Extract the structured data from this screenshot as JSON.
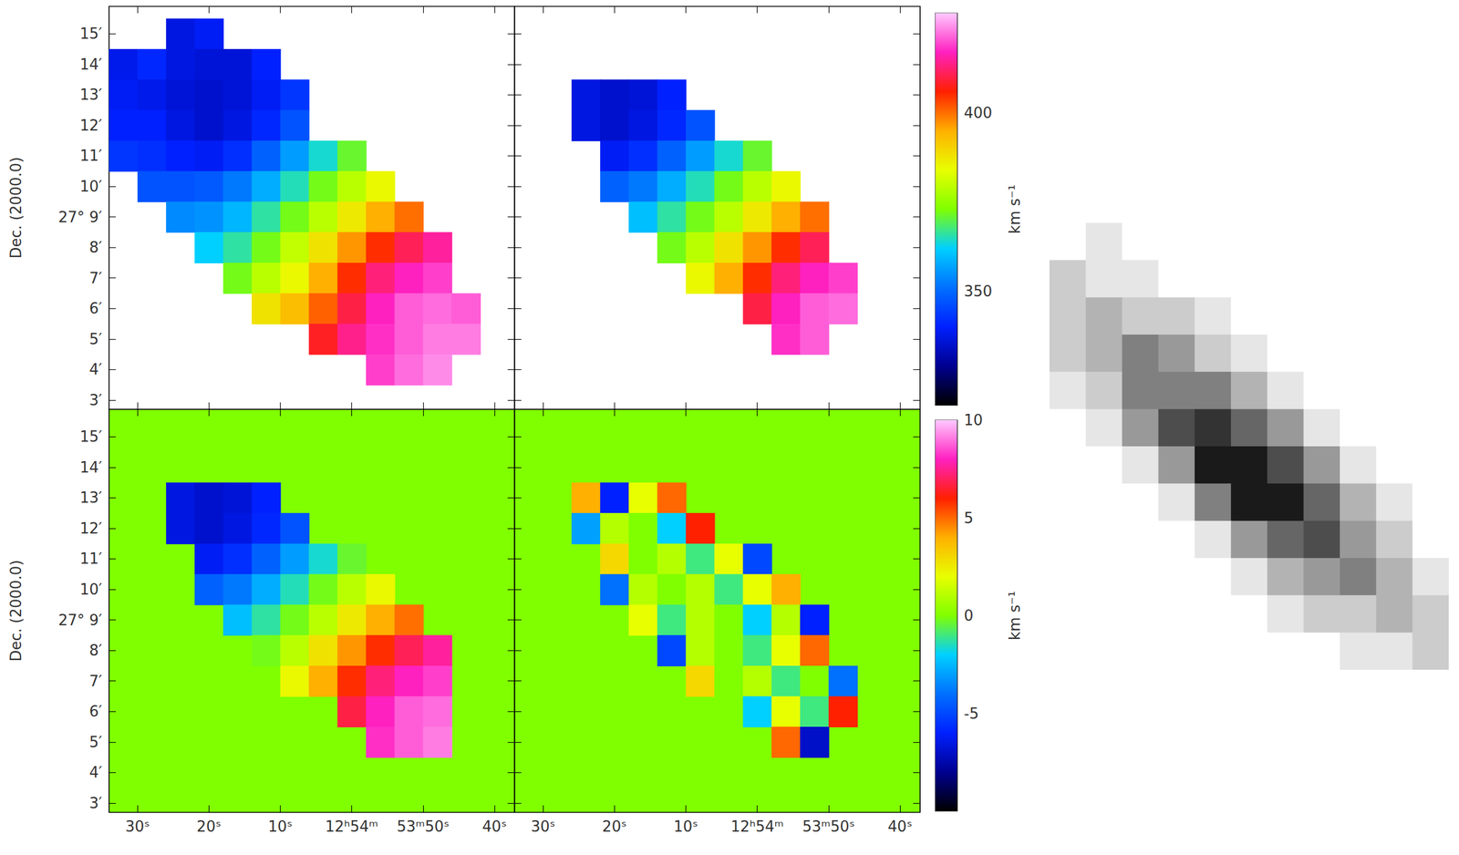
{
  "chart_data": {
    "type": "heatmap",
    "x": [
      32,
      28,
      24,
      20,
      16,
      12,
      8,
      4,
      0,
      -4,
      -8,
      -12,
      -16,
      -20
    ],
    "y": [
      15,
      14,
      13,
      12,
      11,
      10,
      9,
      8,
      7,
      6,
      5,
      4
    ],
    "xlim": [
      34,
      -22.8
    ],
    "ylim": [
      2.7,
      15.9
    ],
    "xticks": [
      {
        "value": 30,
        "label": "30ˢ"
      },
      {
        "value": 20,
        "label": "20ˢ"
      },
      {
        "value": 10,
        "label": "10ˢ"
      },
      {
        "value": 0,
        "label": "12ʰ54ᵐ"
      },
      {
        "value": -10,
        "label": "53ᵐ50ˢ"
      },
      {
        "value": -20,
        "label": "40ˢ"
      }
    ],
    "yticks": [
      {
        "value": 3,
        "label": "3′"
      },
      {
        "value": 4,
        "label": "4′"
      },
      {
        "value": 5,
        "label": "5′"
      },
      {
        "value": 6,
        "label": "6′"
      },
      {
        "value": 7,
        "label": "7′"
      },
      {
        "value": 8,
        "label": "8′"
      },
      {
        "value": 9,
        "label": "27° 9′"
      },
      {
        "value": 10,
        "label": "10′"
      },
      {
        "value": 11,
        "label": "11′"
      },
      {
        "value": 12,
        "label": "12′"
      },
      {
        "value": 13,
        "label": "13′"
      },
      {
        "value": 14,
        "label": "14′"
      },
      {
        "value": 15,
        "label": "15′"
      }
    ],
    "panels": [
      {
        "ylabel": "Dec. (2000.0)",
        "tick_labels": "y",
        "clim": [
          318,
          428
        ],
        "cells": [
          [
            null,
            null,
            337,
            339,
            null,
            null,
            null,
            null,
            null,
            null,
            null,
            null,
            null,
            null
          ],
          [
            338,
            341,
            337,
            336,
            336,
            340,
            null,
            null,
            null,
            null,
            null,
            null,
            null,
            null
          ],
          [
            339,
            338,
            336,
            335,
            336,
            339,
            343,
            null,
            null,
            null,
            null,
            null,
            null,
            null
          ],
          [
            340,
            340,
            337,
            335,
            337,
            341,
            347,
            null,
            null,
            null,
            null,
            null,
            null,
            null
          ],
          [
            343,
            342,
            340,
            339,
            342,
            349,
            356,
            364,
            371,
            null,
            null,
            null,
            null,
            null
          ],
          [
            null,
            347,
            347,
            348,
            352,
            358,
            365,
            372,
            379,
            385,
            null,
            null,
            null,
            null
          ],
          [
            null,
            null,
            354,
            355,
            359,
            366,
            372,
            379,
            387,
            395,
            400,
            null,
            null,
            null
          ],
          [
            null,
            null,
            null,
            362,
            366,
            372,
            380,
            388,
            397,
            405,
            411,
            415,
            null,
            null
          ],
          [
            null,
            null,
            null,
            null,
            372,
            379,
            385,
            395,
            405,
            413,
            417,
            419,
            null,
            null
          ],
          [
            null,
            null,
            null,
            null,
            null,
            388,
            393,
            401,
            410,
            417,
            421,
            422,
            421,
            null
          ],
          [
            null,
            null,
            null,
            null,
            null,
            null,
            null,
            408,
            414,
            418,
            421,
            423,
            423,
            null
          ],
          [
            null,
            null,
            null,
            null,
            null,
            null,
            null,
            null,
            null,
            419,
            422,
            424,
            null,
            null
          ]
        ]
      },
      {
        "tick_labels": false,
        "clim": [
          318,
          428
        ],
        "cells": [
          [
            null,
            null,
            null,
            null,
            null,
            null,
            null,
            null,
            null,
            null,
            null,
            null,
            null,
            null
          ],
          [
            null,
            null,
            null,
            null,
            null,
            null,
            null,
            null,
            null,
            null,
            null,
            null,
            null,
            null
          ],
          [
            null,
            null,
            337,
            335,
            336,
            340,
            null,
            null,
            null,
            null,
            null,
            null,
            null,
            null
          ],
          [
            null,
            null,
            337,
            335,
            337,
            341,
            347,
            null,
            null,
            null,
            null,
            null,
            null,
            null
          ],
          [
            null,
            null,
            null,
            339,
            342,
            349,
            356,
            364,
            371,
            null,
            null,
            null,
            null,
            null
          ],
          [
            null,
            null,
            null,
            349,
            352,
            358,
            365,
            372,
            379,
            385,
            null,
            null,
            null,
            null
          ],
          [
            null,
            null,
            null,
            null,
            360,
            366,
            372,
            379,
            387,
            395,
            400,
            null,
            null,
            null
          ],
          [
            null,
            null,
            null,
            null,
            null,
            372,
            379,
            388,
            397,
            405,
            411,
            null,
            null,
            null
          ],
          [
            null,
            null,
            null,
            null,
            null,
            null,
            385,
            395,
            405,
            413,
            417,
            419,
            null,
            null
          ],
          [
            null,
            null,
            null,
            null,
            null,
            null,
            null,
            null,
            410,
            417,
            421,
            422,
            null,
            null
          ],
          [
            null,
            null,
            null,
            null,
            null,
            null,
            null,
            null,
            null,
            418,
            421,
            null,
            null,
            null
          ],
          [
            null,
            null,
            null,
            null,
            null,
            null,
            null,
            null,
            null,
            null,
            null,
            null,
            null,
            null
          ]
        ]
      },
      {
        "ylabel": "Dec. (2000.0)",
        "tick_labels": true,
        "clim": [
          318,
          428
        ],
        "cells": [
          [
            null,
            null,
            null,
            null,
            null,
            null,
            null,
            null,
            null,
            null,
            null,
            null,
            null,
            null
          ],
          [
            null,
            null,
            null,
            null,
            null,
            null,
            null,
            null,
            null,
            null,
            null,
            null,
            null,
            null
          ],
          [
            null,
            null,
            337,
            335,
            336,
            340,
            null,
            null,
            null,
            null,
            null,
            null,
            null,
            null
          ],
          [
            null,
            null,
            337,
            335,
            337,
            341,
            347,
            null,
            null,
            null,
            null,
            null,
            null,
            null
          ],
          [
            null,
            null,
            null,
            339,
            342,
            349,
            356,
            364,
            371,
            null,
            null,
            null,
            null,
            null
          ],
          [
            null,
            null,
            null,
            349,
            352,
            358,
            365,
            372,
            379,
            385,
            null,
            null,
            null,
            null
          ],
          [
            null,
            null,
            null,
            null,
            360,
            366,
            372,
            379,
            387,
            395,
            400,
            null,
            null,
            null
          ],
          [
            null,
            null,
            null,
            null,
            null,
            372,
            379,
            388,
            397,
            405,
            411,
            415,
            null,
            null
          ],
          [
            null,
            null,
            null,
            null,
            null,
            null,
            385,
            395,
            405,
            413,
            417,
            419,
            null,
            null
          ],
          [
            null,
            null,
            null,
            null,
            null,
            null,
            null,
            null,
            410,
            417,
            421,
            422,
            null,
            null
          ],
          [
            null,
            null,
            null,
            null,
            null,
            null,
            null,
            null,
            null,
            418,
            421,
            423,
            null,
            null
          ],
          [
            null,
            null,
            null,
            null,
            null,
            null,
            null,
            null,
            null,
            null,
            null,
            null,
            null,
            null
          ]
        ]
      },
      {
        "tick_labels": "x",
        "clim": [
          -10,
          10
        ],
        "cells": [
          [
            null,
            null,
            null,
            null,
            null,
            null,
            null,
            null,
            null,
            null,
            null,
            null,
            null,
            null
          ],
          [
            null,
            null,
            null,
            null,
            null,
            null,
            null,
            null,
            null,
            null,
            null,
            null,
            null,
            null
          ],
          [
            null,
            null,
            4,
            -6,
            2,
            5,
            null,
            null,
            null,
            null,
            null,
            null,
            null,
            null
          ],
          [
            null,
            null,
            -3,
            1,
            0,
            -2,
            6,
            null,
            null,
            null,
            null,
            null,
            null,
            null
          ],
          [
            null,
            null,
            null,
            3,
            0,
            1,
            -1,
            2,
            -5,
            null,
            null,
            null,
            null,
            null
          ],
          [
            null,
            null,
            null,
            -4,
            1,
            0,
            1,
            -1,
            2,
            4,
            null,
            null,
            null,
            null
          ],
          [
            null,
            null,
            null,
            null,
            2,
            -1,
            1,
            0,
            -2,
            1,
            -6,
            null,
            null,
            null
          ],
          [
            null,
            null,
            null,
            null,
            null,
            -5,
            1,
            0,
            -1,
            2,
            5,
            null,
            null,
            null
          ],
          [
            null,
            null,
            null,
            null,
            null,
            null,
            3,
            0,
            1,
            -1,
            0,
            -4,
            null,
            null
          ],
          [
            null,
            null,
            null,
            null,
            null,
            null,
            null,
            null,
            -2,
            2,
            -1,
            6,
            null,
            null
          ],
          [
            null,
            null,
            null,
            null,
            null,
            null,
            null,
            null,
            null,
            5,
            -7,
            null,
            null,
            null
          ],
          [
            null,
            null,
            null,
            null,
            null,
            null,
            null,
            null,
            null,
            null,
            null,
            null,
            null,
            null
          ]
        ]
      }
    ],
    "colorbars": [
      {
        "range": [
          318,
          428
        ],
        "ticks": [
          350,
          400
        ],
        "label": "km s⁻¹"
      },
      {
        "range": [
          -10,
          10
        ],
        "ticks": [
          -5,
          0,
          5,
          10
        ],
        "label": "km s⁻¹"
      }
    ],
    "image": {
      "type": "heatmap",
      "tick_labels": false,
      "vlim": [
        0,
        10
      ],
      "values": [
        [
          0,
          1,
          0,
          0,
          0,
          0,
          0,
          0,
          0,
          0,
          0
        ],
        [
          2,
          1,
          1,
          0,
          0,
          0,
          0,
          0,
          0,
          0,
          0
        ],
        [
          2,
          3,
          2,
          2,
          1,
          0,
          0,
          0,
          0,
          0,
          0
        ],
        [
          2,
          3,
          5,
          4,
          2,
          1,
          0,
          0,
          0,
          0,
          0
        ],
        [
          1,
          2,
          5,
          5,
          5,
          3,
          1,
          0,
          0,
          0,
          0
        ],
        [
          0,
          1,
          4,
          7,
          8,
          6,
          4,
          1,
          0,
          0,
          0
        ],
        [
          0,
          0,
          1,
          4,
          9,
          9,
          7,
          4,
          1,
          0,
          0
        ],
        [
          0,
          0,
          0,
          1,
          5,
          9,
          9,
          6,
          3,
          1,
          0
        ],
        [
          0,
          0,
          0,
          0,
          1,
          4,
          6,
          7,
          4,
          2,
          0
        ],
        [
          0,
          0,
          0,
          0,
          0,
          1,
          3,
          4,
          5,
          3,
          1
        ],
        [
          0,
          0,
          0,
          0,
          0,
          0,
          1,
          2,
          2,
          3,
          2
        ],
        [
          0,
          0,
          0,
          0,
          0,
          0,
          0,
          0,
          1,
          1,
          2
        ]
      ]
    }
  }
}
